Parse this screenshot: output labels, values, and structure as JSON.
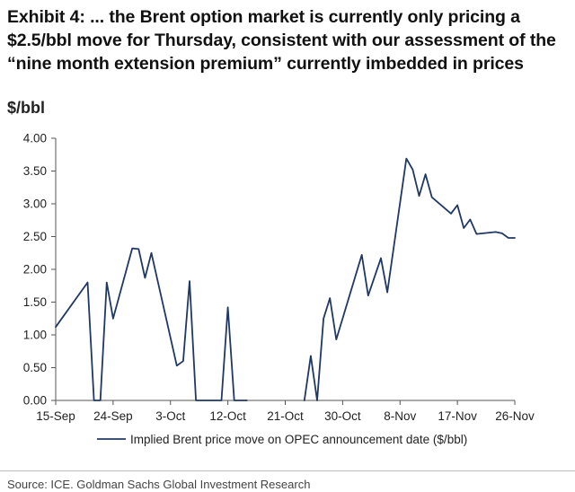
{
  "header": {
    "title_lines": [
      "Exhibit 4: ... the Brent option market is currently only pricing a",
      "$2.5/bbl move for Thursday, consistent with our assessment of the",
      "“nine month extension premium” currently imbedded in prices"
    ],
    "unit": "$/bbl"
  },
  "footer": {
    "source": "Source: ICE. Goldman Sachs Global Investment Research"
  },
  "chart_data": {
    "type": "line",
    "title": "Exhibit 4: ... the Brent option market is currently only pricing a $2.5/bbl move for Thursday, consistent with our assessment of the “nine month extension premium” currently imbedded in prices",
    "ylabel": "$/bbl",
    "xlabel": "",
    "ylim": [
      0,
      4.0
    ],
    "yticks": [
      "4.00",
      "3.50",
      "3.00",
      "2.50",
      "2.00",
      "1.50",
      "1.00",
      "0.50",
      "0.00"
    ],
    "ytick_values": [
      4.0,
      3.5,
      3.0,
      2.5,
      2.0,
      1.5,
      1.0,
      0.5,
      0.0
    ],
    "xticks": [
      "15-Sep",
      "24-Sep",
      "3-Oct",
      "12-Oct",
      "21-Oct",
      "30-Oct",
      "8-Nov",
      "17-Nov",
      "26-Nov"
    ],
    "xlim": [
      "15-Sep",
      "26-Nov"
    ],
    "grid": false,
    "legend_position": "bottom",
    "series": [
      {
        "name": "Implied Brent price move on OPEC announcement date ($/bbl)",
        "color": "#1f3864",
        "segments": [
          [
            [
              "15-Sep",
              1.12
            ],
            [
              "20-Sep",
              1.8
            ],
            [
              "21-Sep",
              0.0
            ],
            [
              "22-Sep",
              0.0
            ],
            [
              "23-Sep",
              1.8
            ],
            [
              "24-Sep",
              1.25
            ],
            [
              "27-Sep",
              2.32
            ],
            [
              "28-Sep",
              2.31
            ],
            [
              "29-Sep",
              1.87
            ],
            [
              "30-Sep",
              2.25
            ],
            [
              "4-Oct",
              0.53
            ],
            [
              "5-Oct",
              0.6
            ],
            [
              "6-Oct",
              1.82
            ],
            [
              "7-Oct",
              0.0
            ],
            [
              "10-Oct",
              0.0
            ],
            [
              "11-Oct",
              0.0
            ],
            [
              "12-Oct",
              1.42
            ],
            [
              "13-Oct",
              0.0
            ],
            [
              "14-Oct",
              0.0
            ],
            [
              "15-Oct",
              0.0
            ]
          ],
          [
            [
              "24-Oct",
              0.0
            ],
            [
              "25-Oct",
              0.68
            ],
            [
              "26-Oct",
              0.0
            ],
            [
              "27-Oct",
              1.25
            ],
            [
              "28-Oct",
              1.56
            ],
            [
              "29-Oct",
              0.93
            ],
            [
              "2-Nov",
              2.22
            ],
            [
              "3-Nov",
              1.6
            ],
            [
              "5-Nov",
              2.17
            ],
            [
              "6-Nov",
              1.65
            ],
            [
              "9-Nov",
              3.69
            ],
            [
              "10-Nov",
              3.52
            ],
            [
              "11-Nov",
              3.12
            ],
            [
              "12-Nov",
              3.45
            ],
            [
              "13-Nov",
              3.1
            ],
            [
              "16-Nov",
              2.85
            ],
            [
              "17-Nov",
              2.98
            ],
            [
              "18-Nov",
              2.63
            ],
            [
              "19-Nov",
              2.76
            ],
            [
              "20-Nov",
              2.54
            ],
            [
              "23-Nov",
              2.57
            ],
            [
              "24-Nov",
              2.55
            ],
            [
              "25-Nov",
              2.48
            ],
            [
              "26-Nov",
              2.48
            ]
          ]
        ]
      }
    ]
  }
}
